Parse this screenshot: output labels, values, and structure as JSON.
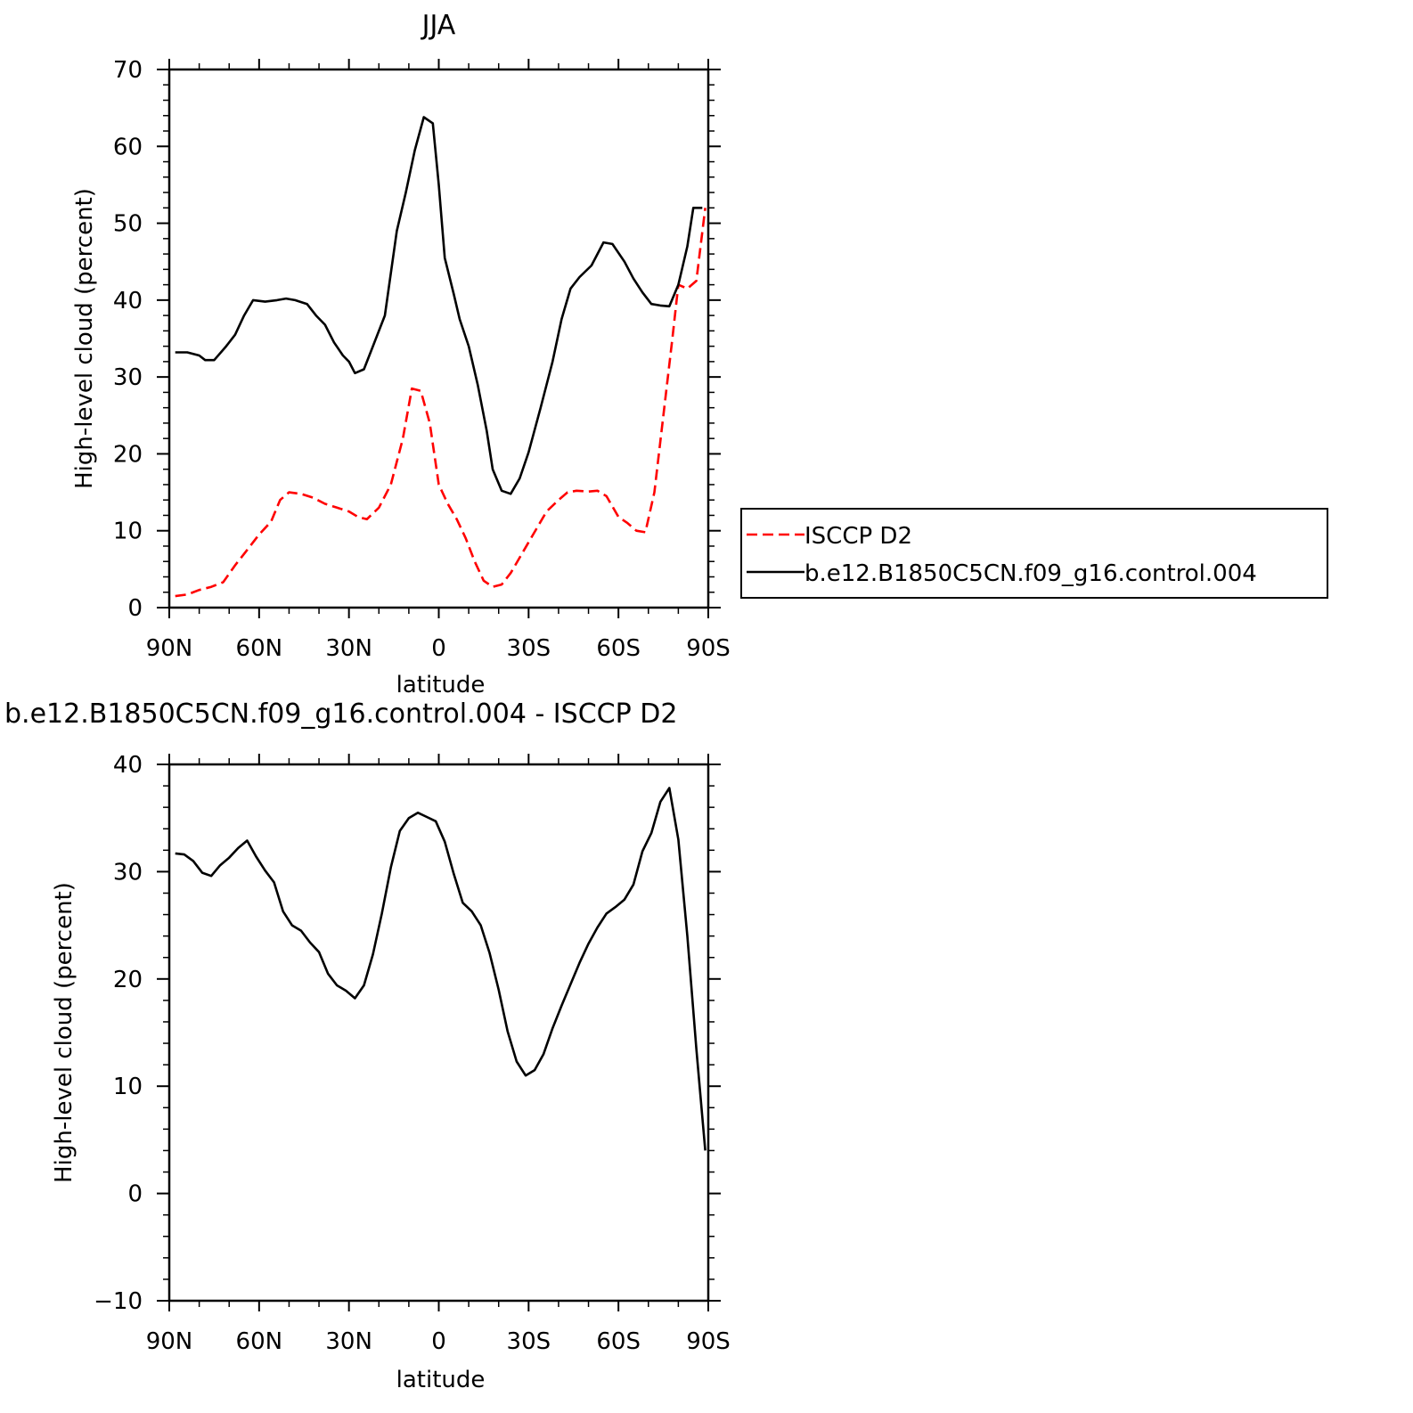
{
  "chart_data": [
    {
      "type": "line",
      "title": "JJA",
      "xlabel": "latitude",
      "ylabel": "High-level cloud (percent)",
      "xlim": [
        -90,
        90
      ],
      "ylim": [
        0,
        70
      ],
      "x_ticks": [
        -90,
        -60,
        -30,
        0,
        30,
        60,
        90
      ],
      "x_tick_labels": [
        "90N",
        "60N",
        "30N",
        "0",
        "30S",
        "60S",
        "90S"
      ],
      "y_ticks": [
        0,
        10,
        20,
        30,
        40,
        50,
        60,
        70
      ],
      "y_tick_labels": [
        "0",
        "10",
        "20",
        "30",
        "40",
        "50",
        "60",
        "70"
      ],
      "legend_position": "right",
      "series": [
        {
          "name": "ISCCP D2",
          "color": "#ff0000",
          "dash": "dashed",
          "x": [
            -88,
            -84,
            -80,
            -76,
            -72,
            -68,
            -64,
            -60,
            -56,
            -53,
            -50,
            -46,
            -42,
            -38,
            -34,
            -30,
            -27,
            -24,
            -20,
            -16,
            -12,
            -9,
            -6,
            -3,
            0,
            3,
            6,
            9,
            12,
            15,
            18,
            21,
            24,
            27,
            30,
            33,
            36,
            40,
            43,
            46,
            50,
            53,
            56,
            60,
            63,
            66,
            69,
            72,
            75,
            78,
            80,
            83,
            86,
            89
          ],
          "y": [
            1.5,
            1.7,
            2.3,
            2.7,
            3.3,
            5.5,
            7.5,
            9.5,
            11.2,
            14.0,
            15.0,
            14.8,
            14.3,
            13.5,
            13.0,
            12.5,
            11.8,
            11.5,
            13.0,
            16.0,
            22.0,
            28.5,
            28.2,
            24.0,
            16.0,
            13.5,
            11.5,
            9.0,
            6.0,
            3.5,
            2.7,
            3.0,
            4.5,
            6.5,
            8.5,
            10.5,
            12.5,
            14.0,
            15.0,
            15.2,
            15.1,
            15.2,
            14.5,
            11.8,
            11.0,
            10.0,
            9.8,
            15.0,
            25.0,
            35.0,
            42.0,
            41.5,
            42.5,
            52.0
          ]
        },
        {
          "name": "b.e12.B1850C5CN.f09_g16.control.004",
          "color": "#000000",
          "dash": "solid",
          "x": [
            -88,
            -84,
            -80,
            -78,
            -75,
            -71,
            -68,
            -65,
            -62,
            -58,
            -54,
            -51,
            -48,
            -44,
            -41,
            -38,
            -35,
            -32,
            -30,
            -28,
            -25,
            -22,
            -18,
            -14,
            -11,
            -8,
            -5,
            -2,
            0,
            2,
            5,
            7,
            10,
            13,
            16,
            18,
            21,
            24,
            27,
            30,
            34,
            38,
            41,
            44,
            47,
            51,
            55,
            58,
            62,
            65,
            68,
            71,
            74,
            77,
            80,
            83,
            85,
            88
          ],
          "y": [
            33.2,
            33.2,
            32.8,
            32.2,
            32.2,
            34.0,
            35.5,
            38.0,
            40.0,
            39.8,
            40.0,
            40.2,
            40.0,
            39.5,
            38.0,
            36.8,
            34.5,
            32.8,
            32.0,
            30.5,
            31.0,
            34.0,
            38.0,
            49.0,
            54.0,
            59.5,
            63.8,
            63.0,
            55.0,
            45.5,
            40.8,
            37.5,
            34.0,
            29.0,
            23.0,
            18.0,
            15.2,
            14.8,
            16.8,
            20.2,
            26.0,
            32.0,
            37.5,
            41.5,
            43.0,
            44.5,
            47.5,
            47.3,
            45.0,
            42.8,
            41.0,
            39.5,
            39.3,
            39.2,
            42.0,
            47.0,
            52.0,
            52.0
          ]
        }
      ]
    },
    {
      "type": "line",
      "title": "b.e12.B1850C5CN.f09_g16.control.004 - ISCCP D2",
      "xlabel": "latitude",
      "ylabel": "High-level cloud (percent)",
      "xlim": [
        -90,
        90
      ],
      "ylim": [
        -10,
        40
      ],
      "x_ticks": [
        -90,
        -60,
        -30,
        0,
        30,
        60,
        90
      ],
      "x_tick_labels": [
        "90N",
        "60N",
        "30N",
        "0",
        "30S",
        "60S",
        "90S"
      ],
      "y_ticks": [
        -10,
        0,
        10,
        20,
        30,
        40
      ],
      "y_tick_labels": [
        "−10",
        "0",
        "10",
        "20",
        "30",
        "40"
      ],
      "series": [
        {
          "color": "#000000",
          "dash": "solid",
          "x": [
            -88,
            -85,
            -82,
            -79,
            -76,
            -73,
            -70,
            -67,
            -64,
            -61,
            -58,
            -55,
            -52,
            -49,
            -46,
            -43,
            -40,
            -37,
            -34,
            -31,
            -28,
            -25,
            -22,
            -19,
            -16,
            -13,
            -10,
            -7,
            -4,
            -1,
            2,
            5,
            8,
            11,
            14,
            17,
            20,
            23,
            26,
            29,
            32,
            35,
            38,
            41,
            44,
            47,
            50,
            53,
            56,
            59,
            62,
            65,
            68,
            71,
            74,
            77,
            80,
            83,
            86,
            89
          ],
          "y": [
            31.7,
            31.6,
            31.0,
            29.9,
            29.6,
            30.6,
            31.3,
            32.2,
            32.9,
            31.4,
            30.1,
            29.0,
            26.3,
            25.0,
            24.5,
            23.4,
            22.5,
            20.5,
            19.4,
            18.9,
            18.2,
            19.4,
            22.3,
            26.1,
            30.4,
            33.8,
            35.0,
            35.5,
            35.1,
            34.7,
            32.8,
            29.8,
            27.1,
            26.3,
            25.0,
            22.4,
            19.0,
            15.1,
            12.3,
            11.0,
            11.5,
            13.0,
            15.4,
            17.5,
            19.5,
            21.5,
            23.3,
            24.8,
            26.1,
            26.7,
            27.4,
            28.8,
            31.9,
            33.6,
            36.5,
            37.8,
            33.0,
            24.0,
            13.5,
            4.0
          ]
        }
      ]
    }
  ]
}
